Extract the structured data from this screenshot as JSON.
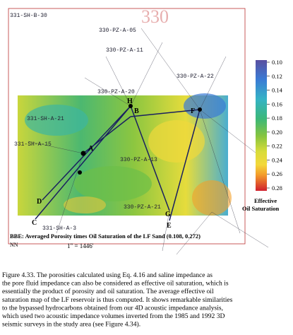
{
  "figure": {
    "well_labels": [
      "331-SH-B-30",
      "330-PZ-A-11",
      "330-PZ-A-20",
      "331-SH-A-21",
      "331-SH-A-15",
      "330-PZ-A-13",
      "330-PZ-A-21",
      "331-SH-A-3",
      "330-PZ-A-22",
      "330-PZ-A-05"
    ],
    "point_labels": [
      "H",
      "F",
      "D",
      "C",
      "G",
      "E",
      "B",
      "A"
    ],
    "colorbar": {
      "ticks": [
        {
          "value": 0.1,
          "label": "0.10"
        },
        {
          "value": 0.12,
          "label": "0.12"
        },
        {
          "value": 0.14,
          "label": "0.14"
        },
        {
          "value": 0.16,
          "label": "0.16"
        },
        {
          "value": 0.18,
          "label": "0.18"
        },
        {
          "value": 0.2,
          "label": "0.20"
        },
        {
          "value": 0.22,
          "label": "0.22"
        },
        {
          "value": 0.24,
          "label": "0.24"
        },
        {
          "value": 0.26,
          "label": "0.26"
        },
        {
          "value": 0.28,
          "label": "0.28"
        }
      ],
      "title_lines": [
        "Effective",
        "Oil Saturation"
      ]
    },
    "map_note": "BBE: Averaged Porosity times Oil Saturation of the LF Sand (0.108, 0.272)",
    "north": "NN",
    "scale": "1\" = 1446'"
  },
  "caption": {
    "lines": [
      "Figure 4.33.  The porosities calculated using Eq. 4.16 and saline impedance as",
      "the pore fluid impedance can also be considered as effective oil saturation, which is",
      "essentially the product of porosity and oil saturation.  The average effective oil",
      "saturation map of the LF reservoir is thus computed.  It shows remarkable similarities",
      "to the bypassed hydrocarbons obtained from our 4D acoustic impedance analysis,",
      "which used two acoustic impedance volumes inverted from the 1985 and 1992 3D",
      "seismic surveys in the study area (see Figure 4.34)."
    ]
  }
}
